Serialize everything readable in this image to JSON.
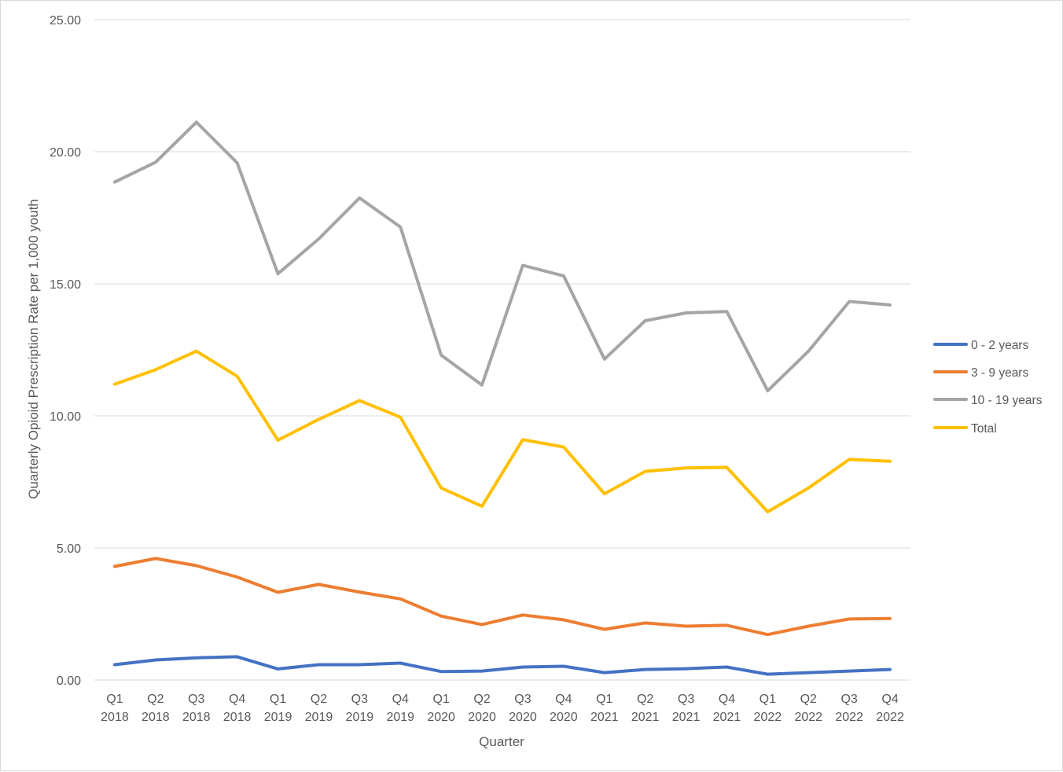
{
  "chart_data": {
    "type": "line",
    "title": "",
    "xlabel": "Quarter",
    "ylabel": "Quarterly Opioid Prescription Rate per 1,000 youth",
    "ylim": [
      0,
      25
    ],
    "yticks": [
      "0.00",
      "5.00",
      "10.00",
      "15.00",
      "20.00",
      "25.00"
    ],
    "grid": "horizontal",
    "legend_position": "right",
    "categories": [
      [
        "Q1",
        "2018"
      ],
      [
        "Q2",
        "2018"
      ],
      [
        "Q3",
        "2018"
      ],
      [
        "Q4",
        "2018"
      ],
      [
        "Q1",
        "2019"
      ],
      [
        "Q2",
        "2019"
      ],
      [
        "Q3",
        "2019"
      ],
      [
        "Q4",
        "2019"
      ],
      [
        "Q1",
        "2020"
      ],
      [
        "Q2",
        "2020"
      ],
      [
        "Q3",
        "2020"
      ],
      [
        "Q4",
        "2020"
      ],
      [
        "Q1",
        "2021"
      ],
      [
        "Q2",
        "2021"
      ],
      [
        "Q3",
        "2021"
      ],
      [
        "Q4",
        "2021"
      ],
      [
        "Q1",
        "2022"
      ],
      [
        "Q2",
        "2022"
      ],
      [
        "Q3",
        "2022"
      ],
      [
        "Q4",
        "2022"
      ]
    ],
    "series": [
      {
        "name": "0 - 2 years",
        "color": "#4472C4",
        "values": [
          0.58,
          0.76,
          0.84,
          0.88,
          0.42,
          0.58,
          0.58,
          0.64,
          0.32,
          0.34,
          0.49,
          0.52,
          0.28,
          0.4,
          0.43,
          0.49,
          0.22,
          0.28,
          0.34,
          0.4
        ]
      },
      {
        "name": "3 - 9 years",
        "color": "#ED7D31",
        "values": [
          4.3,
          4.6,
          4.33,
          3.9,
          3.32,
          3.62,
          3.33,
          3.07,
          2.42,
          2.1,
          2.46,
          2.28,
          1.92,
          2.16,
          2.04,
          2.07,
          1.72,
          2.04,
          2.31,
          2.33
        ]
      },
      {
        "name": "10 - 19 years",
        "color": "#A5A5A5",
        "values": [
          18.85,
          19.6,
          21.12,
          19.58,
          15.38,
          16.7,
          18.25,
          17.15,
          12.3,
          11.17,
          15.7,
          15.3,
          12.15,
          13.6,
          13.9,
          13.95,
          10.95,
          12.45,
          14.33,
          14.2
        ]
      },
      {
        "name": "Total",
        "color": "#FFC000",
        "values": [
          11.2,
          11.75,
          12.45,
          11.5,
          9.08,
          9.87,
          10.58,
          9.95,
          7.27,
          6.58,
          9.1,
          8.82,
          7.05,
          7.9,
          8.03,
          8.05,
          6.37,
          7.27,
          8.35,
          8.28
        ]
      }
    ]
  }
}
